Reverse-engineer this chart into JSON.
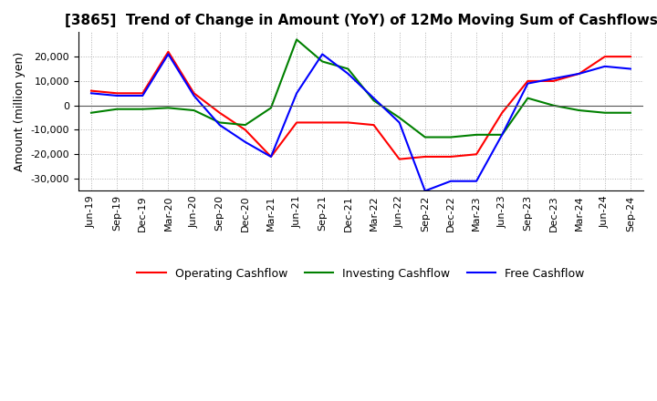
{
  "title": "[3865]  Trend of Change in Amount (YoY) of 12Mo Moving Sum of Cashflows",
  "ylabel": "Amount (million yen)",
  "x_labels": [
    "Jun-19",
    "Sep-19",
    "Dec-19",
    "Mar-20",
    "Jun-20",
    "Sep-20",
    "Dec-20",
    "Mar-21",
    "Jun-21",
    "Sep-21",
    "Dec-21",
    "Mar-22",
    "Jun-22",
    "Sep-22",
    "Dec-22",
    "Mar-23",
    "Jun-23",
    "Sep-23",
    "Dec-23",
    "Mar-24",
    "Jun-24",
    "Sep-24"
  ],
  "operating": [
    6000,
    5000,
    5000,
    22000,
    5000,
    -3000,
    -10000,
    -21000,
    -7000,
    -7000,
    -7000,
    -8000,
    -22000,
    -21000,
    -21000,
    -20000,
    -3000,
    10000,
    10000,
    13000,
    20000,
    20000
  ],
  "investing": [
    -3000,
    -1500,
    -1500,
    -1000,
    -2000,
    -7000,
    -8000,
    -1000,
    27000,
    18000,
    15000,
    2000,
    -5000,
    -13000,
    -13000,
    -12000,
    -12000,
    3000,
    0,
    -2000,
    -3000,
    -3000
  ],
  "free": [
    5000,
    4000,
    4000,
    21000,
    4000,
    -8000,
    -15000,
    -21000,
    5000,
    21000,
    13000,
    3000,
    -7000,
    -35000,
    -31000,
    -31000,
    -12000,
    9000,
    11000,
    13000,
    16000,
    15000
  ],
  "ylim": [
    -35000,
    30000
  ],
  "yticks": [
    -30000,
    -20000,
    -10000,
    0,
    10000,
    20000
  ],
  "operating_color": "#ff0000",
  "investing_color": "#008000",
  "free_color": "#0000ff",
  "background_color": "#ffffff",
  "grid_color": "#b0b0b0",
  "title_fontsize": 11,
  "label_fontsize": 9,
  "tick_fontsize": 8
}
